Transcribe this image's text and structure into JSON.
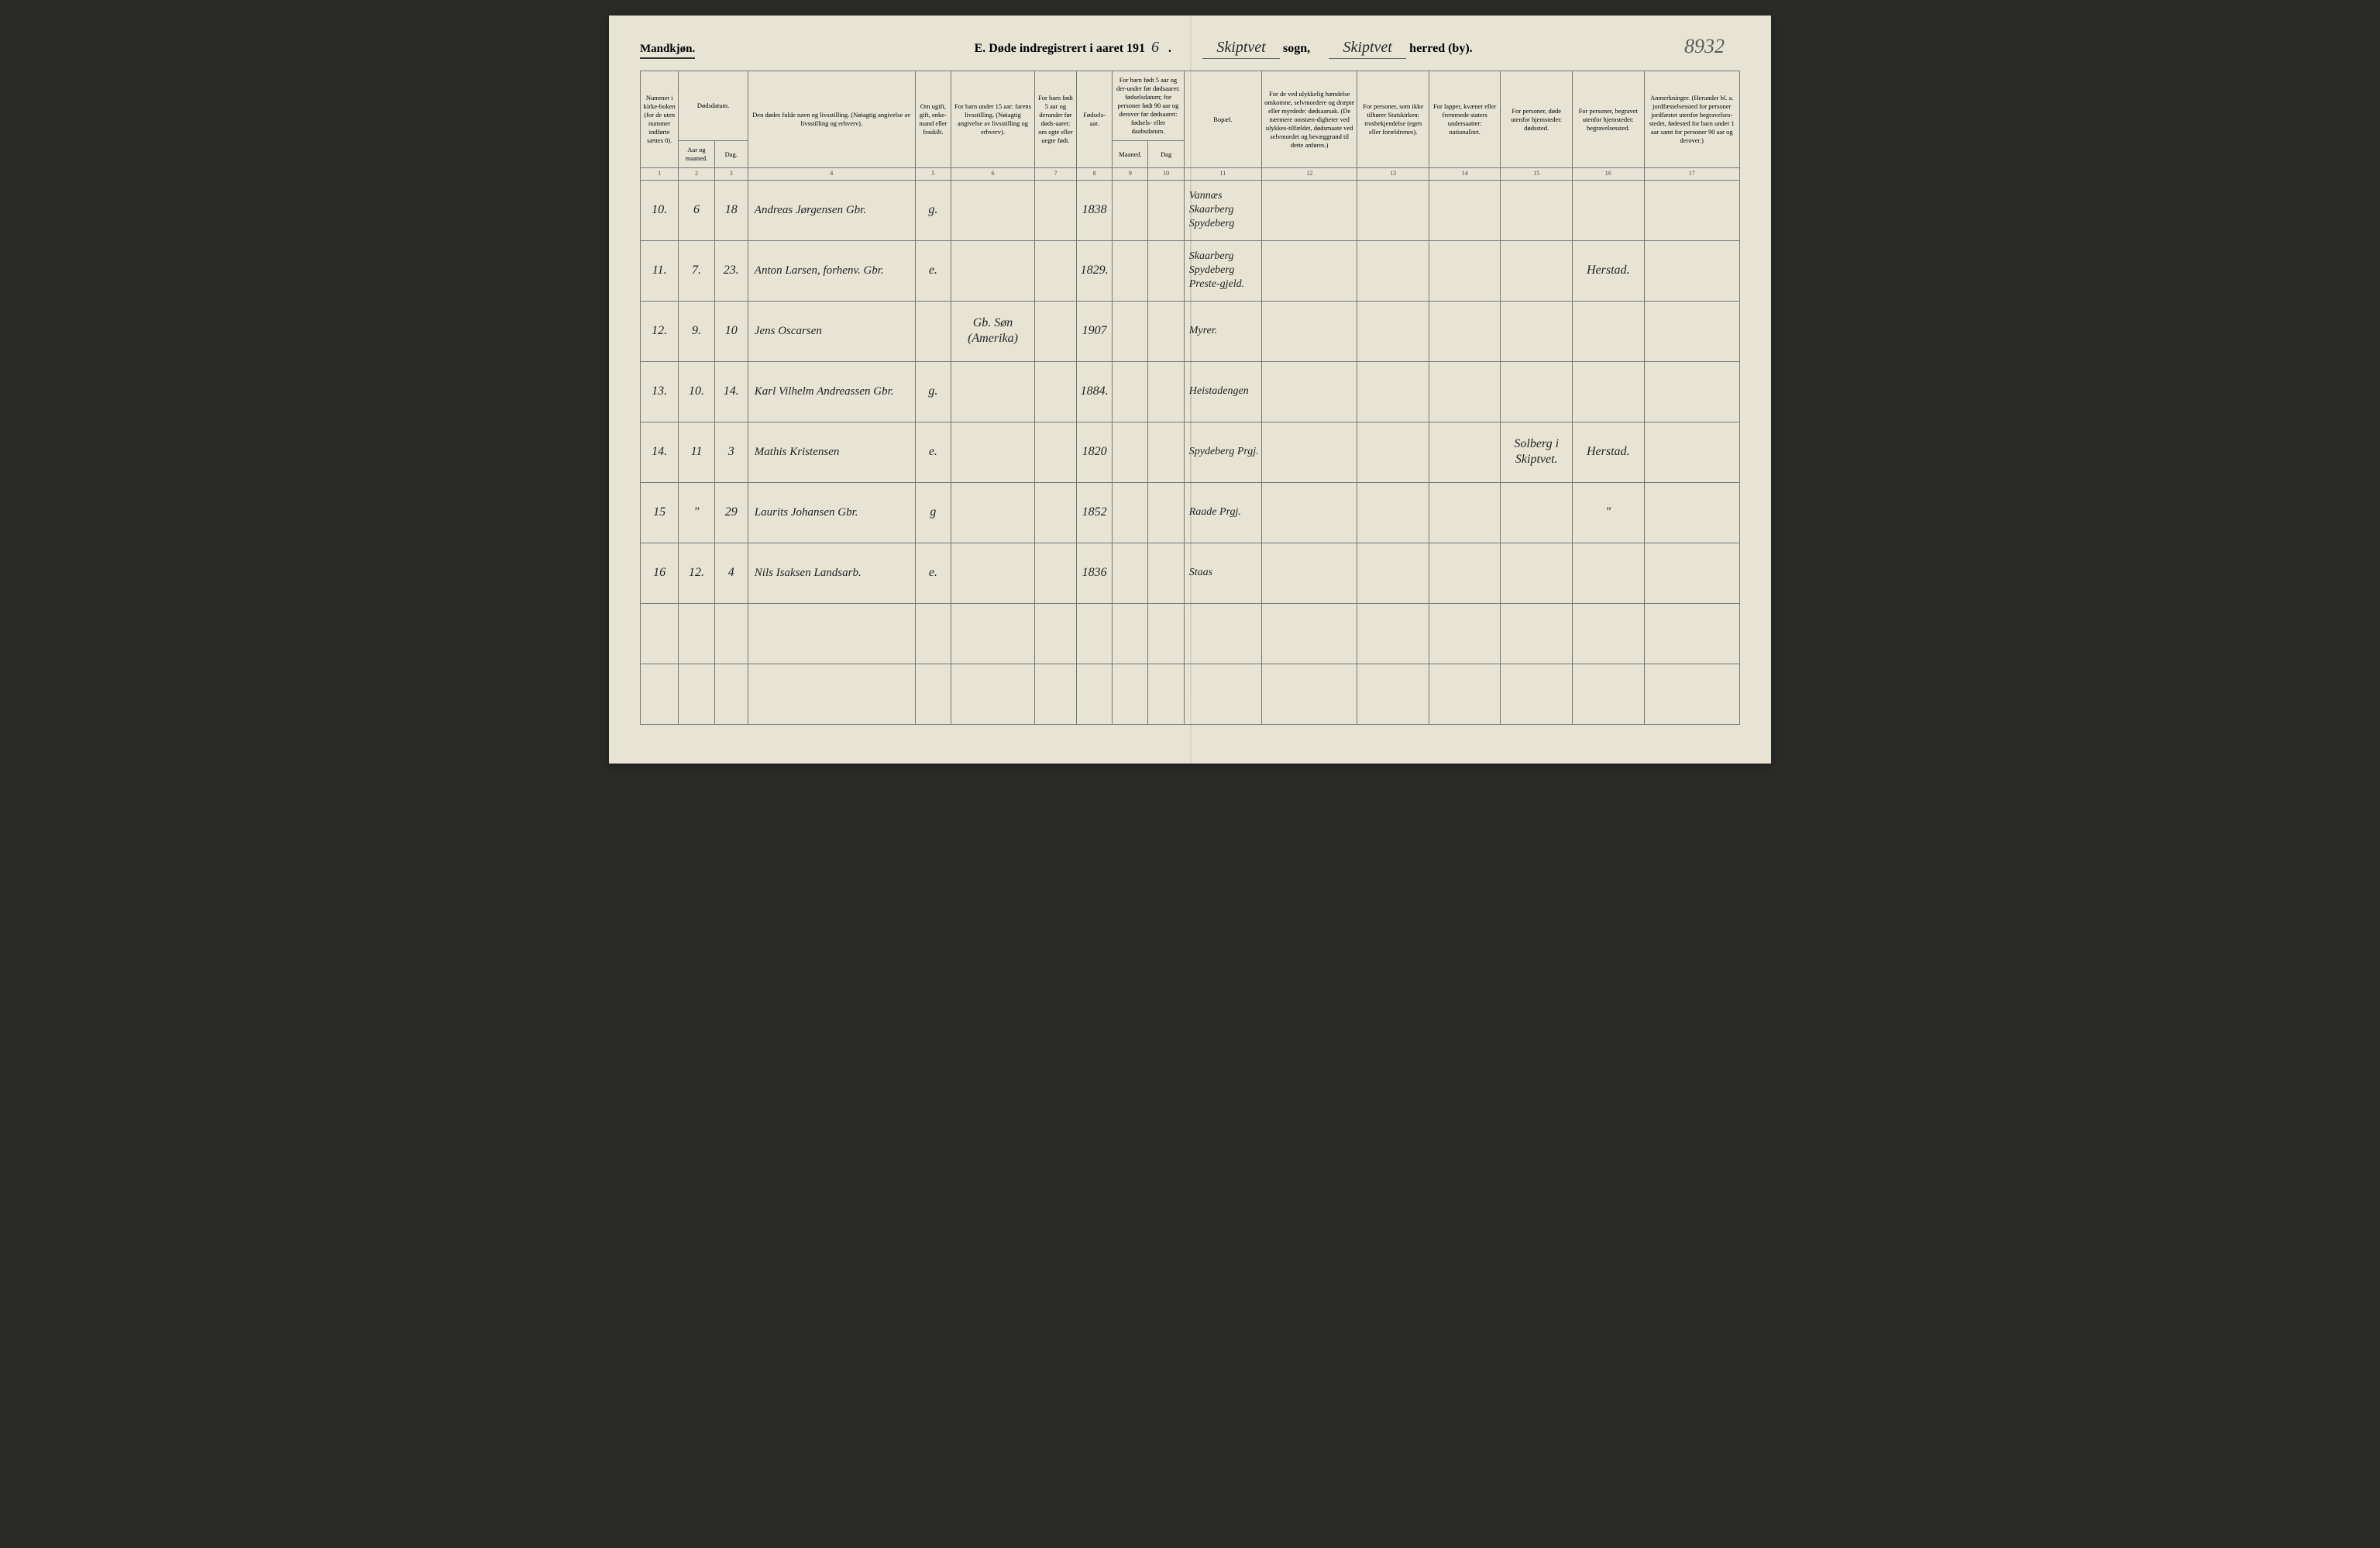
{
  "gender_label": "Mandkjøn.",
  "page_number_hand": "8932",
  "title": {
    "prefix": "E.",
    "main": "Døde indregistrert i aaret 191",
    "year_suffix_hand": "6",
    "sogn_hand": "Skiptvet",
    "sogn_label": "sogn,",
    "herred_hand": "Skiptvet",
    "herred_label": "herred (by)."
  },
  "headers": {
    "h1": "Nummer i kirke-boken (for de uten nummer indførte sættes 0).",
    "h2_top": "Dødsdatum.",
    "h2a": "Aar og maaned.",
    "h2b": "Dag.",
    "h4": "Den dødes fulde navn og livsstilling. (Nøiagtig angivelse av livsstilling og erhverv).",
    "h5": "Om ugift, gift, enke-mand eller fraskilt.",
    "h6": "For barn under 15 aar: farens livsstilling. (Nøiagtig angivelse av livsstilling og erhverv).",
    "h7": "For barn født 5 aar og derunder før døds-aaret: om egte eller uegte født.",
    "h8": "Fødsels-aar.",
    "h9_10_top": "For barn født 5 aar og der-under før dødsaaret: fødselsdatum; for personer født 90 aar og derover før dødsaaret: fødsels- eller daabsdatum.",
    "h9": "Maaned.",
    "h10": "Dag",
    "h11": "Bopæl.",
    "h12": "For de ved ulykkelig hændelse omkomne, selvmordere og dræpte eller myrdede: dødsaarsak. (De nærmere omstæn-digheter ved ulykkes-tilfældet, dødsmaate ved selvmordet og bevæggrund til dette anføres.)",
    "h13": "For personer, som ikke tilhører Statskirken: trosbekjendelse (egen eller forældrenes).",
    "h14": "For lapper, kvæner eller fremmede staters undersaatter: nationalitet.",
    "h15": "For personer, døde utenfor hjemstedet: dødssted.",
    "h16": "For personer, begravet utenfor hjemstedet: begravelsessted.",
    "h17": "Anmerkninger. (Herunder bl. a. jordfæstelsessted for personer jordfæstet utenfor begravelses-stedet, fødested for barn under 1 aar samt for personer 90 aar og derover.)"
  },
  "colnums": [
    "1",
    "2",
    "3",
    "4",
    "5",
    "6",
    "7",
    "8",
    "9",
    "10",
    "11",
    "12",
    "13",
    "14",
    "15",
    "16",
    "17"
  ],
  "rows": [
    {
      "num": "10.",
      "month": "6",
      "day": "18",
      "name": "Andreas Jørgensen Gbr.",
      "status": "g.",
      "parent": "",
      "egte": "",
      "year": "1838",
      "m": "",
      "d": "",
      "bopael": "Vannæs Skaarberg Spydeberg",
      "cause": "",
      "tro": "",
      "nat": "",
      "dsted": "",
      "bsted": "",
      "anm": ""
    },
    {
      "num": "11.",
      "month": "7.",
      "day": "23.",
      "name": "Anton Larsen, forhenv. Gbr.",
      "status": "e.",
      "parent": "",
      "egte": "",
      "year": "1829.",
      "m": "",
      "d": "",
      "bopael": "Skaarberg Spydeberg Preste-gjeld.",
      "cause": "",
      "tro": "",
      "nat": "",
      "dsted": "",
      "bsted": "Herstad.",
      "anm": ""
    },
    {
      "num": "12.",
      "month": "9.",
      "day": "10",
      "name": "Jens Oscarsen",
      "status": "",
      "parent": "Gb. Søn (Amerika)",
      "egte": "",
      "year": "1907",
      "m": "",
      "d": "",
      "bopael": "Myrer.",
      "cause": "",
      "tro": "",
      "nat": "",
      "dsted": "",
      "bsted": "",
      "anm": ""
    },
    {
      "num": "13.",
      "month": "10.",
      "day": "14.",
      "name": "Karl Vilhelm Andreassen Gbr.",
      "status": "g.",
      "parent": "",
      "egte": "",
      "year": "1884.",
      "m": "",
      "d": "",
      "bopael": "Heistadengen",
      "cause": "",
      "tro": "",
      "nat": "",
      "dsted": "",
      "bsted": "",
      "anm": ""
    },
    {
      "num": "14.",
      "month": "11",
      "day": "3",
      "name": "Mathis Kristensen",
      "status": "e.",
      "parent": "",
      "egte": "",
      "year": "1820",
      "m": "",
      "d": "",
      "bopael": "Spydeberg Prgj.",
      "cause": "",
      "tro": "",
      "nat": "",
      "dsted": "Solberg i Skiptvet.",
      "bsted": "Herstad.",
      "anm": ""
    },
    {
      "num": "15",
      "month": "\"",
      "day": "29",
      "name": "Laurits Johansen Gbr.",
      "status": "g",
      "parent": "",
      "egte": "",
      "year": "1852",
      "m": "",
      "d": "",
      "bopael": "Raade Prgj.",
      "cause": "",
      "tro": "",
      "nat": "",
      "dsted": "",
      "bsted": "\"",
      "anm": ""
    },
    {
      "num": "16",
      "month": "12.",
      "day": "4",
      "name": "Nils Isaksen Landsarb.",
      "status": "e.",
      "parent": "",
      "egte": "",
      "year": "1836",
      "m": "",
      "d": "",
      "bopael": "Staas",
      "cause": "",
      "tro": "",
      "nat": "",
      "dsted": "",
      "bsted": "",
      "anm": ""
    }
  ],
  "empty_rows": 2,
  "colors": {
    "page_bg": "#e8e4d4",
    "border": "#777777",
    "text": "#222222"
  }
}
